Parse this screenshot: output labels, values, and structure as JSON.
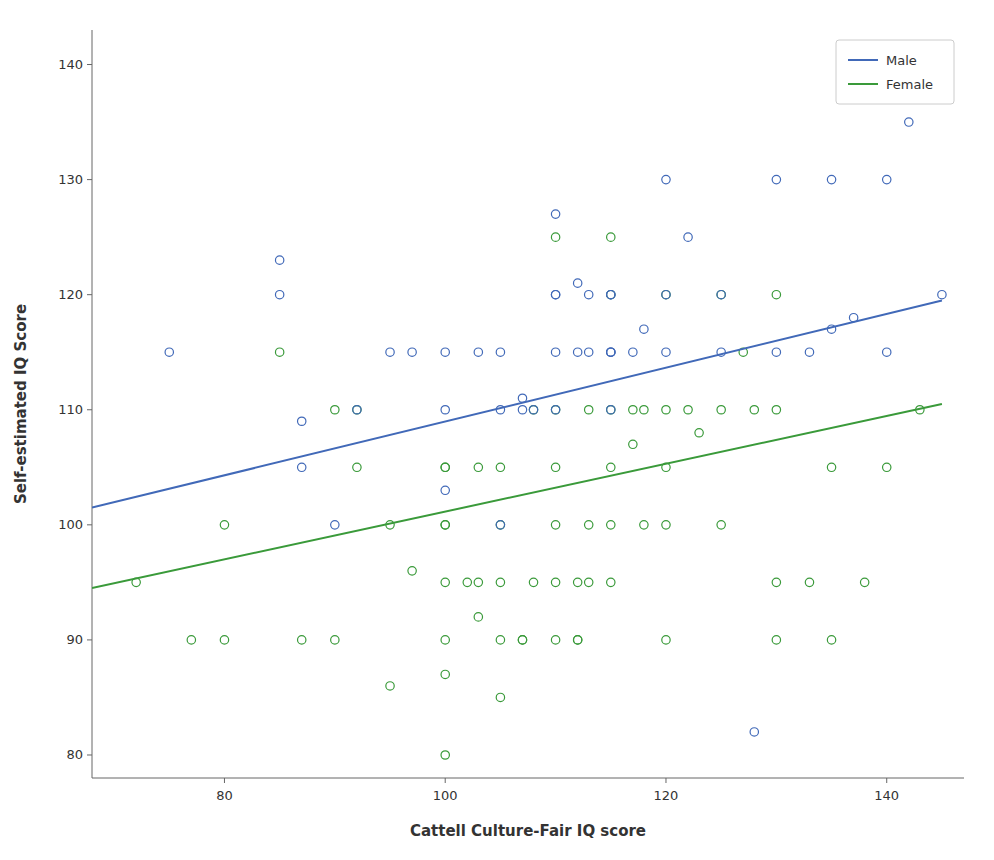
{
  "chart_data": {
    "type": "scatter",
    "xlabel": "Cattell Culture-Fair IQ score",
    "ylabel": "Self-estimated IQ Score",
    "xlim": [
      68,
      147
    ],
    "ylim": [
      78,
      143
    ],
    "xticks": [
      80,
      100,
      120,
      140
    ],
    "yticks": [
      80,
      90,
      100,
      110,
      120,
      130,
      140
    ],
    "grid": false,
    "legend": "upper right",
    "marker": "circle",
    "series": [
      {
        "name": "Male",
        "color": "#4169b8",
        "x": [
          75,
          85,
          85,
          87,
          87,
          90,
          92,
          95,
          97,
          100,
          100,
          100,
          103,
          105,
          105,
          105,
          107,
          107,
          108,
          110,
          110,
          110,
          110,
          110,
          112,
          112,
          113,
          113,
          115,
          115,
          115,
          115,
          115,
          115,
          117,
          118,
          120,
          120,
          120,
          122,
          125,
          125,
          128,
          130,
          130,
          133,
          135,
          135,
          137,
          140,
          140,
          142,
          145
        ],
        "values": [
          115,
          120,
          123,
          105,
          109,
          100,
          110,
          115,
          115,
          110,
          115,
          103,
          115,
          100,
          110,
          115,
          110,
          111,
          110,
          110,
          115,
          120,
          120,
          127,
          115,
          121,
          115,
          120,
          110,
          115,
          115,
          120,
          120,
          115,
          115,
          117,
          115,
          120,
          130,
          125,
          115,
          120,
          82,
          115,
          130,
          115,
          130,
          117,
          118,
          130,
          115,
          135,
          120
        ],
        "fit_x": [
          68,
          145
        ],
        "fit_values": [
          101.5,
          119.5
        ]
      },
      {
        "name": "Female",
        "color": "#3a9a3a",
        "x": [
          72,
          77,
          80,
          80,
          85,
          87,
          90,
          90,
          92,
          92,
          95,
          95,
          97,
          100,
          100,
          100,
          100,
          100,
          100,
          100,
          100,
          102,
          103,
          103,
          103,
          105,
          105,
          105,
          105,
          105,
          107,
          107,
          108,
          108,
          110,
          110,
          110,
          110,
          110,
          110,
          112,
          112,
          112,
          113,
          113,
          113,
          115,
          115,
          115,
          115,
          115,
          115,
          117,
          117,
          118,
          118,
          120,
          120,
          120,
          120,
          120,
          122,
          123,
          125,
          125,
          125,
          127,
          128,
          130,
          130,
          130,
          130,
          133,
          135,
          135,
          138,
          140,
          143
        ],
        "values": [
          95,
          90,
          90,
          100,
          115,
          90,
          90,
          110,
          105,
          110,
          86,
          100,
          96,
          87,
          90,
          95,
          100,
          100,
          105,
          105,
          80,
          95,
          92,
          95,
          105,
          85,
          90,
          95,
          100,
          105,
          90,
          90,
          95,
          110,
          90,
          95,
          100,
          105,
          110,
          125,
          90,
          90,
          95,
          95,
          100,
          110,
          95,
          100,
          105,
          110,
          120,
          125,
          107,
          110,
          100,
          110,
          90,
          100,
          105,
          110,
          120,
          110,
          108,
          100,
          110,
          120,
          115,
          110,
          90,
          95,
          110,
          120,
          95,
          90,
          105,
          95,
          105,
          110
        ],
        "fit_x": [
          68,
          145
        ],
        "fit_values": [
          94.5,
          110.5
        ]
      }
    ]
  }
}
